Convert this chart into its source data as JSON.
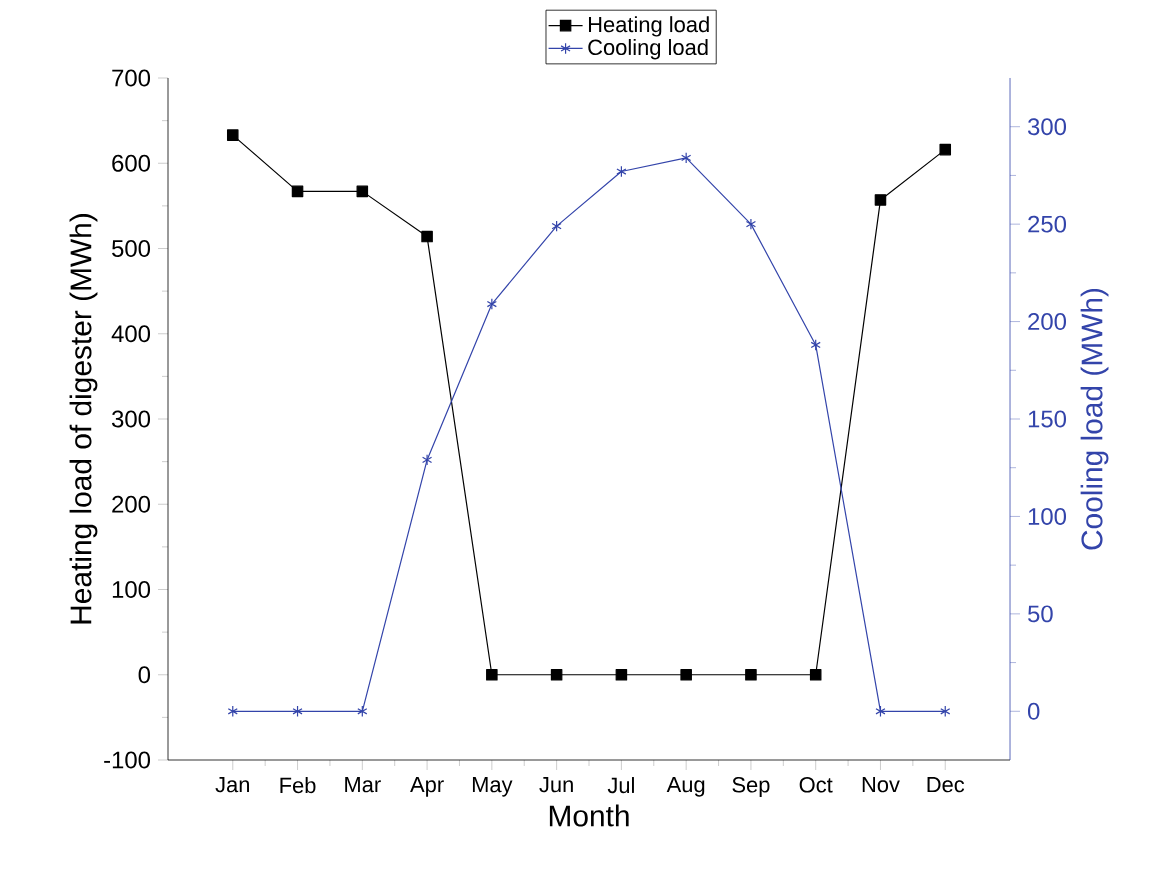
{
  "chart_data": {
    "type": "line",
    "xlabel": "Month",
    "ylabel": "Heating load of digester (MWh)",
    "y2label": "Cooling load (MWh)",
    "categories": [
      "Jan",
      "Feb",
      "Mar",
      "Apr",
      "May",
      "Jun",
      "Jul",
      "Aug",
      "Sep",
      "Oct",
      "Nov",
      "Dec"
    ],
    "series": [
      {
        "name": "Heating load",
        "color": "#000000",
        "marker": "square",
        "axis": "y",
        "values": [
          633,
          567,
          567,
          514,
          0,
          0,
          0,
          0,
          0,
          0,
          557,
          616
        ]
      },
      {
        "name": "Cooling load",
        "color": "#3344aa",
        "marker": "cross",
        "axis": "y2",
        "values": [
          0,
          0,
          0,
          129,
          209,
          249,
          277,
          284,
          250,
          188,
          0,
          0
        ]
      }
    ],
    "ylim": [
      -100,
      700
    ],
    "yticks": [
      -100,
      0,
      100,
      200,
      300,
      400,
      500,
      600,
      700
    ],
    "y2lim": [
      -25,
      325
    ],
    "y2ticks": [
      0,
      50,
      100,
      150,
      200,
      250,
      300
    ],
    "legend": "top",
    "grid": false
  }
}
